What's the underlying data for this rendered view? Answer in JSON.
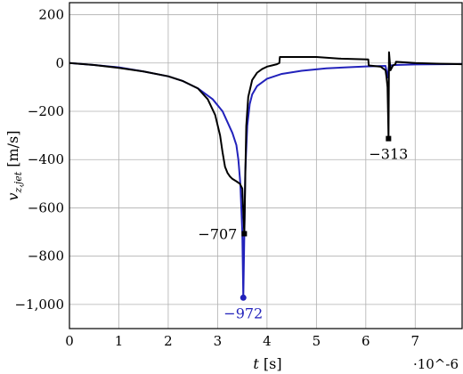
{
  "chart_data": {
    "type": "line",
    "xlabel": "t [s]",
    "ylabel": "v_{z,jet} [m/s]",
    "x_multiplier": "·10^-6",
    "xlim": [
      0,
      7.95
    ],
    "ylim": [
      -1100,
      250
    ],
    "x_ticks": [
      "0",
      "1",
      "2",
      "3",
      "4",
      "5",
      "6",
      "7"
    ],
    "y_ticks": [
      "200",
      "0",
      "−200",
      "−400",
      "−600",
      "−800",
      "−1,000"
    ],
    "y_tick_values": [
      200,
      0,
      -200,
      -400,
      -600,
      -800,
      -1000
    ],
    "x_tick_values": [
      0,
      1,
      2,
      3,
      4,
      5,
      6,
      7
    ],
    "grid": true,
    "colors": {
      "black_series": "#000000",
      "blue_series": "#2222bb",
      "grid": "#b0b0b0"
    },
    "series": [
      {
        "color": "black",
        "x": [
          0,
          0.5,
          1.0,
          1.5,
          2.0,
          2.3,
          2.6,
          2.8,
          2.95,
          3.05,
          3.1,
          3.15,
          3.2,
          3.25,
          3.3,
          3.38,
          3.45,
          3.5,
          3.52,
          3.54,
          3.55,
          3.56,
          3.58,
          3.62,
          3.7,
          3.8,
          3.9,
          4.0,
          4.1,
          4.2,
          4.25,
          4.26,
          4.4,
          5.0,
          5.5,
          6.05,
          6.06,
          6.3,
          6.4,
          6.42,
          6.44,
          6.45,
          6.46,
          6.47,
          6.5,
          6.55,
          6.6,
          6.61,
          7.0,
          7.5,
          7.95
        ],
        "y": [
          0,
          -8,
          -20,
          -35,
          -55,
          -75,
          -105,
          -150,
          -215,
          -300,
          -370,
          -430,
          -455,
          -470,
          -480,
          -490,
          -500,
          -520,
          -620,
          -707,
          -600,
          -470,
          -260,
          -140,
          -70,
          -40,
          -25,
          -15,
          -10,
          -5,
          0,
          25,
          25,
          25,
          18,
          15,
          -10,
          -15,
          -30,
          -60,
          -100,
          -200,
          -313,
          45,
          -30,
          -10,
          -5,
          5,
          0,
          -3,
          -5
        ]
      },
      {
        "color": "blue",
        "x": [
          0,
          0.5,
          1.0,
          1.5,
          2.0,
          2.3,
          2.6,
          2.9,
          3.1,
          3.2,
          3.3,
          3.38,
          3.42,
          3.46,
          3.5,
          3.52,
          3.54,
          3.56,
          3.6,
          3.65,
          3.7,
          3.8,
          4.0,
          4.3,
          4.7,
          5.2,
          6.0,
          6.4,
          6.44,
          6.47,
          6.5,
          6.6,
          7.0,
          7.5,
          7.95
        ],
        "y": [
          0,
          -8,
          -18,
          -35,
          -55,
          -75,
          -105,
          -150,
          -200,
          -245,
          -290,
          -340,
          -400,
          -500,
          -700,
          -972,
          -720,
          -450,
          -260,
          -170,
          -130,
          -95,
          -65,
          -45,
          -32,
          -22,
          -14,
          -12,
          -60,
          -15,
          -10,
          -8,
          -6,
          -5,
          -4
        ]
      }
    ],
    "annotations": [
      {
        "text": "−707",
        "x": 3.54,
        "y": -707,
        "color": "black",
        "marker": "square"
      },
      {
        "text": "−972",
        "x": 3.52,
        "y": -972,
        "color": "blue",
        "marker": "circle"
      },
      {
        "text": "−313",
        "x": 6.46,
        "y": -313,
        "color": "black",
        "marker": "square"
      }
    ]
  }
}
